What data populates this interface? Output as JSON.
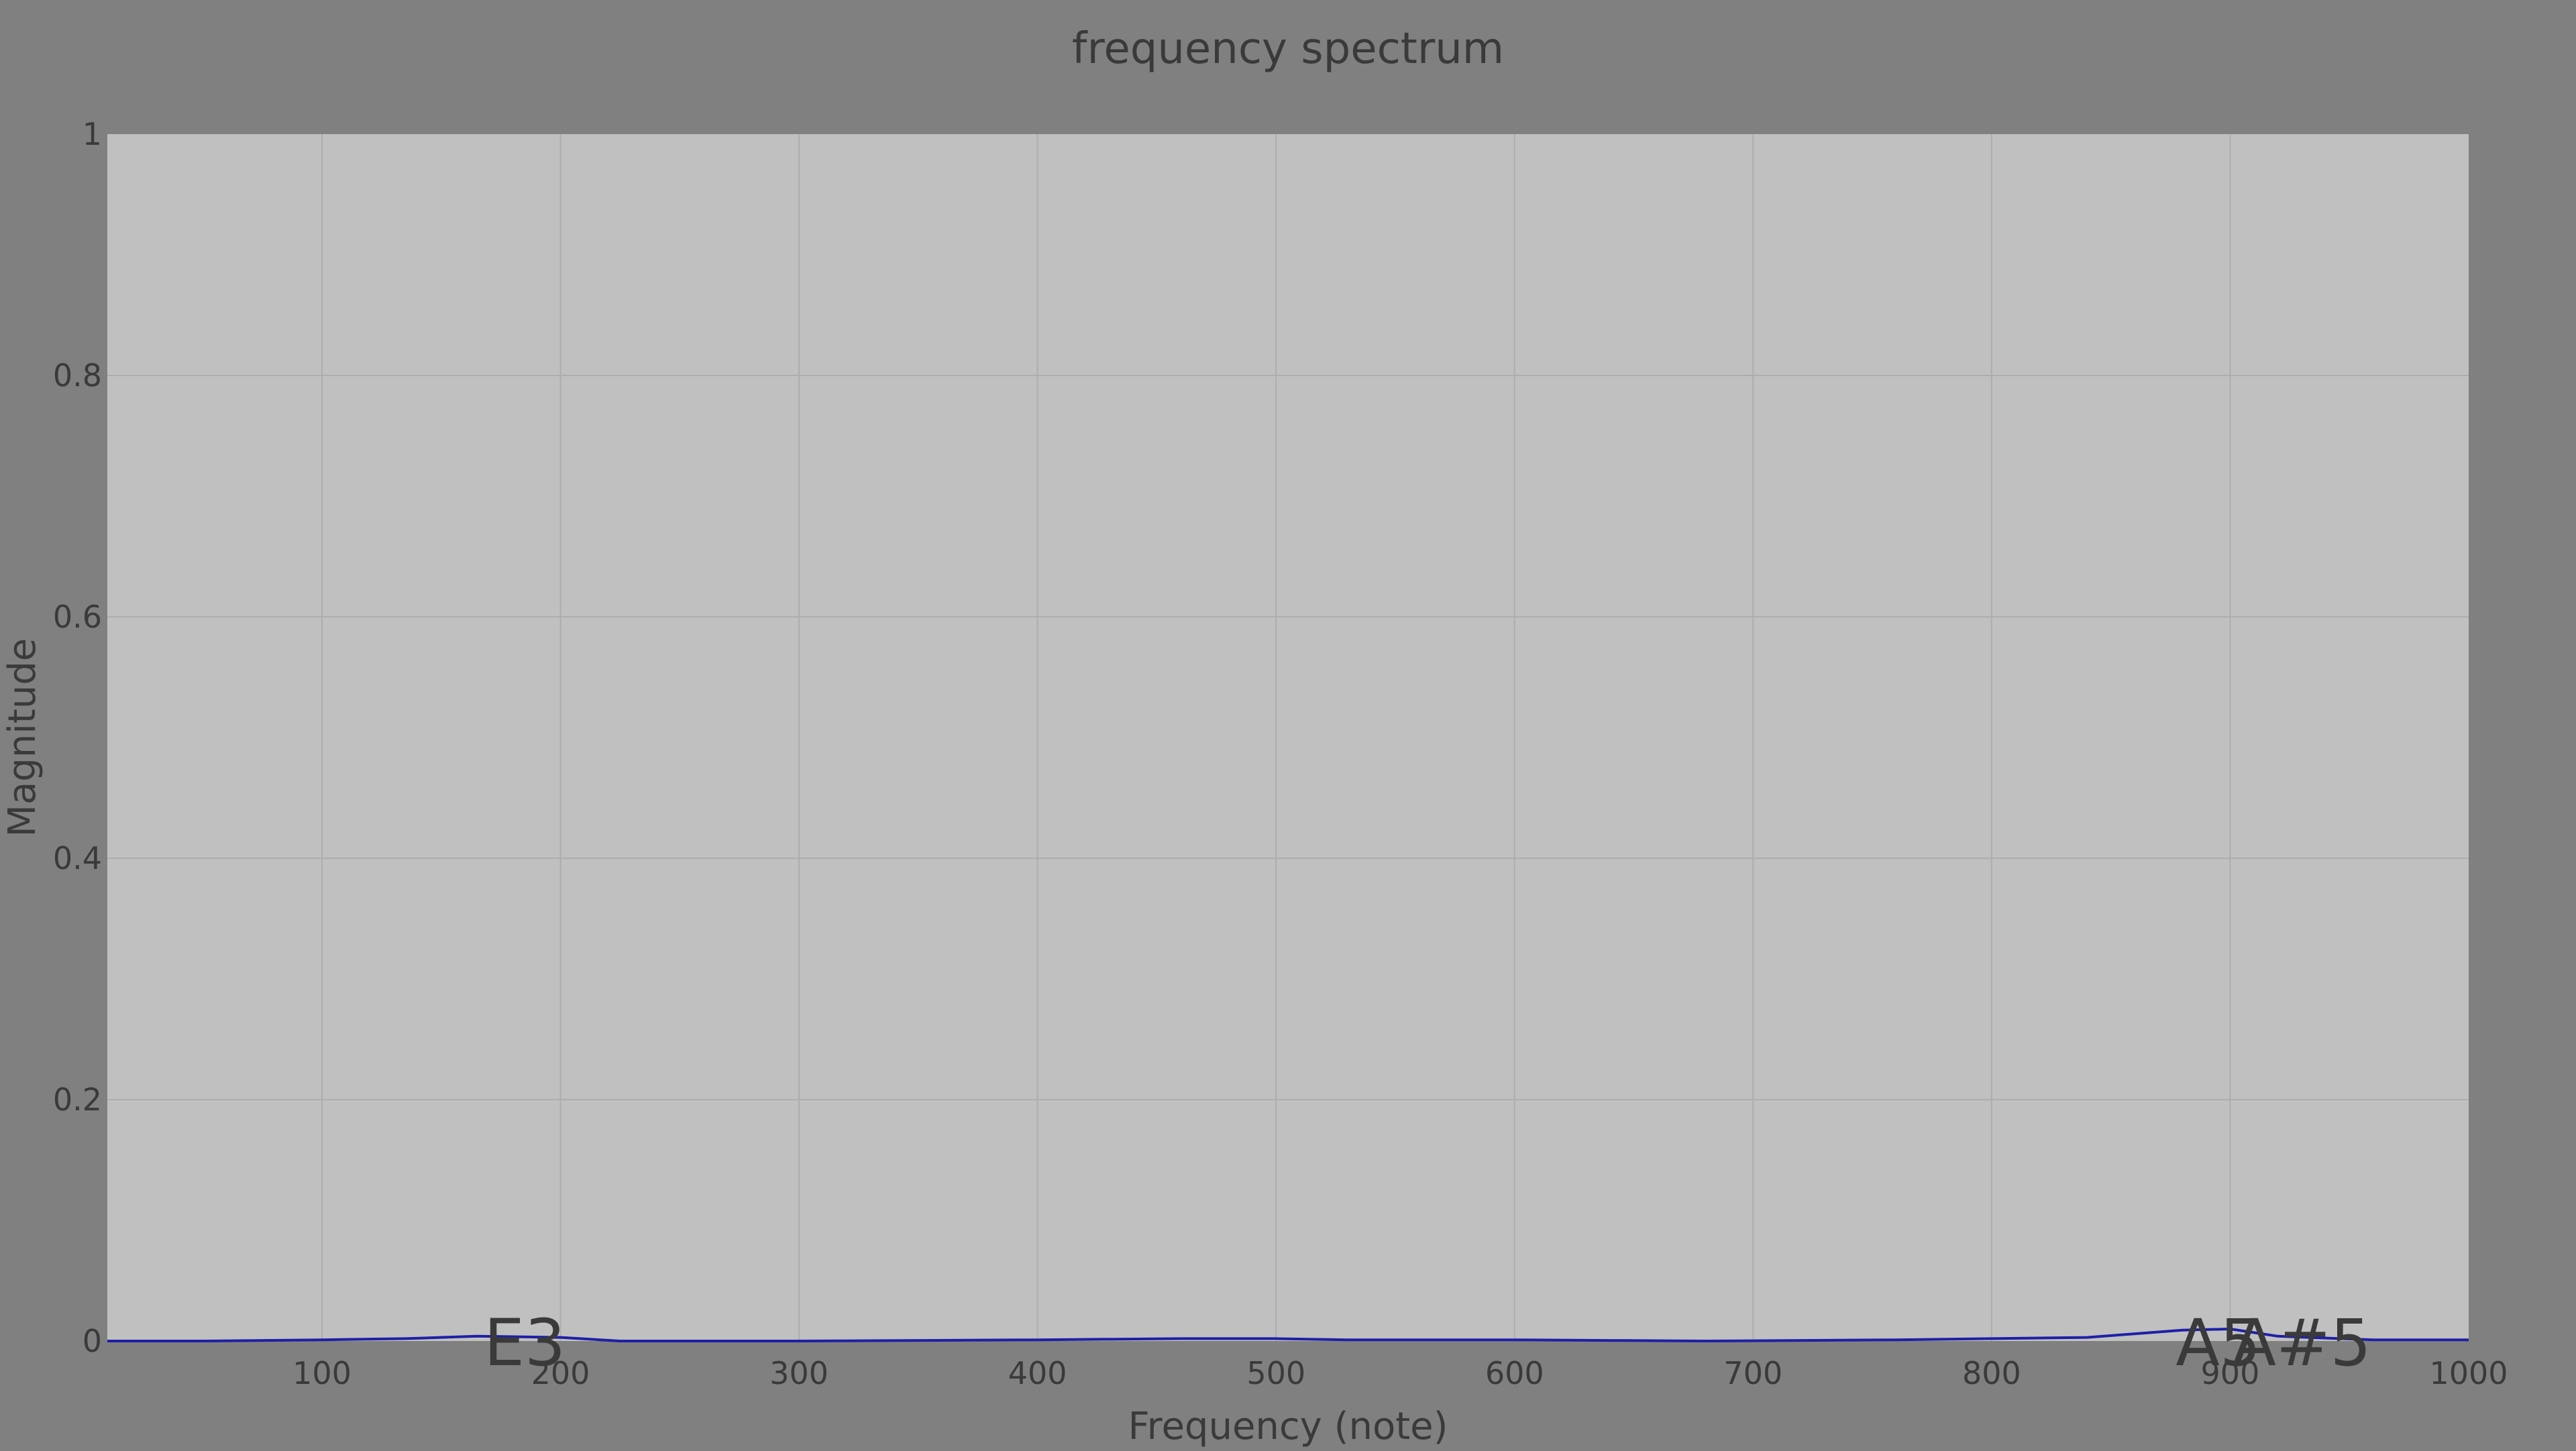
{
  "chart_data": {
    "type": "line",
    "title": "frequency spectrum",
    "xlabel": "Frequency (note)",
    "ylabel": "Magnitude",
    "xlim": [
      10,
      1000
    ],
    "ylim": [
      0,
      1
    ],
    "grid": true,
    "x_ticks": [
      100,
      200,
      300,
      400,
      500,
      600,
      700,
      800,
      900,
      1000
    ],
    "y_ticks": [
      0,
      0.2,
      0.4,
      0.6,
      0.8,
      1
    ],
    "y_tick_labels": [
      "0",
      "0.2",
      "0.4",
      "0.6",
      "0.8",
      "1"
    ],
    "series": [
      {
        "color": "#1f1fa8",
        "x": [
          10,
          50,
          100,
          135,
          165,
          200,
          225,
          300,
          400,
          460,
          500,
          530,
          600,
          680,
          760,
          800,
          840,
          880,
          900,
          920,
          960,
          1000
        ],
        "y": [
          0,
          0,
          0.001,
          0.002,
          0.004,
          0.003,
          0,
          0,
          0.001,
          0.002,
          0.002,
          0.001,
          0.001,
          0,
          0.001,
          0.002,
          0.003,
          0.009,
          0.01,
          0.004,
          0.001,
          0.001
        ]
      }
    ],
    "annotations": [
      {
        "text": "E3",
        "x": 185,
        "y": 0
      },
      {
        "text": "A5",
        "x": 895,
        "y": 0
      },
      {
        "text": "A#5",
        "x": 930,
        "y": 0
      }
    ]
  }
}
